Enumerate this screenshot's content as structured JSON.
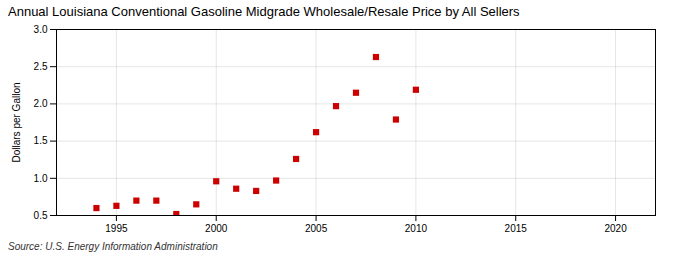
{
  "chart_data": {
    "type": "scatter",
    "title": "Annual Louisiana Conventional Gasoline Midgrade Wholesale/Resale Price by All Sellers",
    "ylabel": "Dollars per Gallon",
    "source": "Source: U.S. Energy Information Administration",
    "x": [
      1994,
      1995,
      1996,
      1997,
      1998,
      1999,
      2000,
      2001,
      2002,
      2003,
      2004,
      2005,
      2006,
      2007,
      2008,
      2009,
      2010
    ],
    "values": [
      0.6,
      0.63,
      0.7,
      0.7,
      0.52,
      0.65,
      0.96,
      0.86,
      0.83,
      0.97,
      1.26,
      1.62,
      1.97,
      2.15,
      2.63,
      1.79,
      2.19
    ],
    "color": "#cc0000",
    "marker": "square",
    "xlim": [
      1992,
      2022
    ],
    "xticks": [
      1995,
      2000,
      2005,
      2010,
      2015,
      2020
    ],
    "ylim": [
      0.5,
      3.0
    ],
    "yticks": [
      0.5,
      {
        "value": 1.0,
        "label": "1.0"
      },
      1.5,
      {
        "value": 2.0,
        "label": "2.0"
      },
      2.5,
      {
        "value": 3.0,
        "label": "3.0"
      }
    ],
    "grid": true
  }
}
